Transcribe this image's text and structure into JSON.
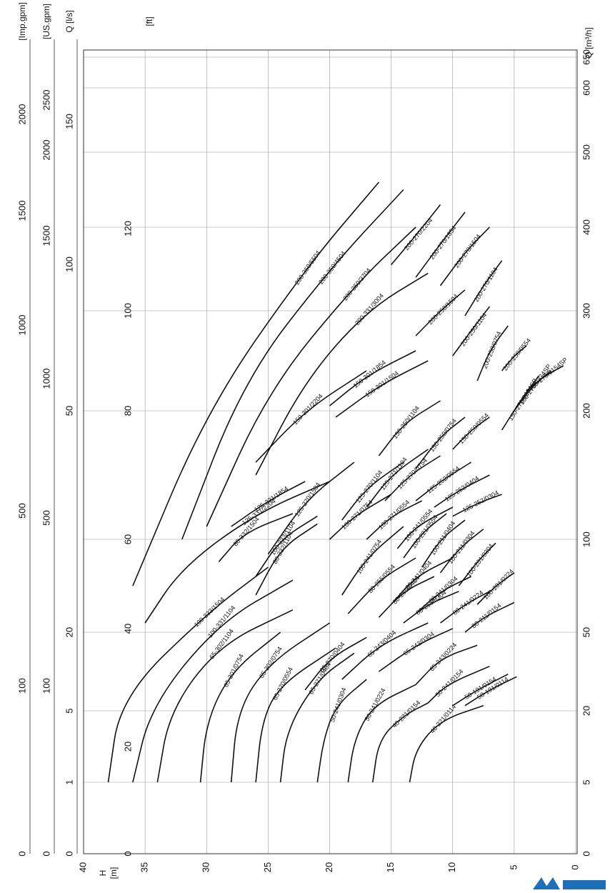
{
  "chart_data": {
    "type": "line",
    "grid": true,
    "x_axis": {
      "label": "H\n[m]",
      "ticks": [
        0,
        5,
        10,
        15,
        20,
        25,
        30,
        35,
        40
      ],
      "range": [
        0,
        40
      ]
    },
    "y_axis_primary": {
      "label": "Q [m³/h]",
      "ticks": [
        0,
        5,
        20,
        50,
        100,
        200,
        300,
        400,
        500,
        600,
        650
      ],
      "range": [
        0,
        650
      ],
      "scale": "nonlinear"
    },
    "secondary_axes": [
      {
        "label": "[ft]",
        "ticks": [
          "0",
          "20",
          "40",
          "60",
          "80",
          "100",
          "120"
        ]
      },
      {
        "label": "Q [l/s]",
        "ticks": [
          "0",
          "1",
          "5",
          "20",
          "50",
          "100",
          "150"
        ]
      },
      {
        "label": "[US.gpm]",
        "ticks": [
          "0",
          "100",
          "500",
          "1000",
          "1500",
          "2000",
          "2500"
        ]
      },
      {
        "label": "[Imp.gpm]",
        "ticks": [
          "0",
          "100",
          "500",
          "1000",
          "1500",
          "2000"
        ]
      }
    ],
    "series": [
      {
        "name": "40-221/0114",
        "points": [
          [
            13.5,
            5
          ],
          [
            13,
            12
          ],
          [
            11,
            18
          ],
          [
            7.5,
            22
          ]
        ]
      },
      {
        "name": "40-221/0154",
        "points": [
          [
            16.5,
            5
          ],
          [
            16,
            14
          ],
          [
            14,
            19
          ],
          [
            12,
            23
          ]
        ]
      },
      {
        "name": "50-191/0114",
        "points": [
          [
            9,
            22
          ],
          [
            7,
            28
          ],
          [
            4.8,
            33
          ]
        ]
      },
      {
        "name": "50-191/0154",
        "points": [
          [
            10,
            22
          ],
          [
            8,
            28
          ],
          [
            5.5,
            34
          ]
        ]
      },
      {
        "name": "50-241/0154",
        "points": [
          [
            12,
            23
          ],
          [
            10.5,
            30
          ],
          [
            7,
            37
          ]
        ]
      },
      {
        "name": "50-241/0224",
        "points": [
          [
            18.5,
            5
          ],
          [
            18,
            14
          ],
          [
            16.5,
            22
          ],
          [
            13,
            30
          ]
        ]
      },
      {
        "name": "50-241/0304",
        "points": [
          [
            21,
            5
          ],
          [
            20.5,
            14
          ],
          [
            19.5,
            22
          ],
          [
            17,
            32
          ]
        ]
      },
      {
        "name": "65-243/0224",
        "points": [
          [
            13,
            30
          ],
          [
            11,
            40
          ],
          [
            8,
            45
          ]
        ]
      },
      {
        "name": "65-243/0304",
        "points": [
          [
            16,
            35
          ],
          [
            13,
            45
          ],
          [
            10,
            52
          ]
        ]
      },
      {
        "name": "65-243/0404",
        "points": [
          [
            19,
            32
          ],
          [
            16,
            45
          ],
          [
            12,
            55
          ]
        ]
      },
      {
        "name": "65-270/0404",
        "points": [
          [
            22,
            28
          ],
          [
            20,
            40
          ],
          [
            17,
            48
          ]
        ]
      },
      {
        "name": "65-270/0554",
        "points": [
          [
            26,
            5
          ],
          [
            25.5,
            18
          ],
          [
            24,
            30
          ],
          [
            19.5,
            44
          ]
        ]
      },
      {
        "name": "65-271/0404",
        "points": [
          [
            24,
            5
          ],
          [
            23.5,
            16
          ],
          [
            21,
            32
          ],
          [
            18,
            42
          ]
        ]
      },
      {
        "name": "65-301/0754",
        "points": [
          [
            30.5,
            5
          ],
          [
            30,
            18
          ],
          [
            28,
            35
          ],
          [
            24,
            50
          ]
        ]
      },
      {
        "name": "65-302/0754",
        "points": [
          [
            28,
            5
          ],
          [
            27.5,
            20
          ],
          [
            25,
            38
          ],
          [
            20,
            55
          ]
        ]
      },
      {
        "name": "65-302/1104",
        "points": [
          [
            34,
            5
          ],
          [
            33,
            20
          ],
          [
            29,
            45
          ],
          [
            23,
            62
          ]
        ]
      },
      {
        "name": "80-211/0154",
        "points": [
          [
            9,
            50
          ],
          [
            7.5,
            58
          ],
          [
            5,
            66
          ]
        ]
      },
      {
        "name": "80-241/0224",
        "points": [
          [
            11,
            55
          ],
          [
            9,
            65
          ],
          [
            7,
            72
          ]
        ]
      },
      {
        "name": "80-241/0304",
        "points": [
          [
            13,
            60
          ],
          [
            11,
            72
          ],
          [
            8.5,
            80
          ]
        ]
      },
      {
        "name": "80-241/0404",
        "points": [
          [
            15,
            65
          ],
          [
            13,
            80
          ],
          [
            10,
            90
          ]
        ]
      },
      {
        "name": "80-255/0304",
        "points": [
          [
            14,
            55
          ],
          [
            12,
            65
          ],
          [
            9.5,
            72
          ]
        ]
      },
      {
        "name": "80-255/0404",
        "points": [
          [
            16,
            58
          ],
          [
            14,
            72
          ],
          [
            11.5,
            80
          ]
        ]
      },
      {
        "name": "80-255/0554",
        "points": [
          [
            18.5,
            60
          ],
          [
            16,
            78
          ],
          [
            13,
            90
          ]
        ]
      },
      {
        "name": "80-332/1104",
        "points": [
          [
            26,
            70
          ],
          [
            24,
            95
          ],
          [
            21,
            112
          ]
        ]
      },
      {
        "name": "80-332/1504",
        "points": [
          [
            29,
            88
          ],
          [
            27,
            105
          ],
          [
            23,
            120
          ]
        ]
      },
      {
        "name": "100-201/0224",
        "points": [
          [
            8,
            65
          ],
          [
            6.5,
            75
          ],
          [
            5,
            82
          ]
        ]
      },
      {
        "name": "100-201/0304",
        "points": [
          [
            9.5,
            75
          ],
          [
            8,
            88
          ],
          [
            6.5,
            98
          ]
        ]
      },
      {
        "name": "100-211/0304",
        "points": [
          [
            11,
            82
          ],
          [
            9.5,
            95
          ],
          [
            7.5,
            108
          ]
        ]
      },
      {
        "name": "100-211/0404",
        "points": [
          [
            12.5,
            85
          ],
          [
            11,
            100
          ],
          [
            9,
            115
          ]
        ]
      },
      {
        "name": "100-221/0554",
        "points": [
          [
            14,
            90
          ],
          [
            12.5,
            105
          ],
          [
            10.5,
            120
          ]
        ]
      },
      {
        "name": "100-241/0554",
        "points": [
          [
            14.5,
            95
          ],
          [
            13,
            110
          ],
          [
            10,
            125
          ]
        ]
      },
      {
        "name": "100-241/0754",
        "points": [
          [
            19,
            70
          ],
          [
            17,
            90
          ],
          [
            14,
            110
          ]
        ]
      },
      {
        "name": "100-271/0554",
        "points": [
          [
            17,
            100
          ],
          [
            15,
            118
          ],
          [
            12.5,
            130
          ]
        ]
      },
      {
        "name": "100-271/0754",
        "points": [
          [
            20,
            100
          ],
          [
            18,
            118
          ],
          [
            15,
            135
          ]
        ]
      },
      {
        "name": "100-331/1104",
        "points": [
          [
            36,
            5
          ],
          [
            34.5,
            22
          ],
          [
            29,
            55
          ],
          [
            23,
            78
          ]
        ]
      },
      {
        "name": "100-333/1104",
        "points": [
          [
            26,
            80
          ],
          [
            24,
            100
          ],
          [
            21,
            118
          ]
        ]
      },
      {
        "name": "100-333/1504",
        "points": [
          [
            38,
            5
          ],
          [
            37,
            25
          ],
          [
            30,
            60
          ],
          [
            25,
            85
          ]
        ]
      },
      {
        "name": "125-252/0304",
        "points": [
          [
            10,
            118
          ],
          [
            8,
            128
          ],
          [
            6,
            135
          ]
        ]
      },
      {
        "name": "125-252/0404",
        "points": [
          [
            11.5,
            125
          ],
          [
            9.5,
            138
          ],
          [
            7,
            150
          ]
        ]
      },
      {
        "name": "125-252/0554",
        "points": [
          [
            13,
            130
          ],
          [
            11,
            145
          ],
          [
            8.5,
            160
          ]
        ]
      },
      {
        "name": "125-270/0754",
        "points": [
          [
            15.5,
            130
          ],
          [
            13.5,
            150
          ],
          [
            11,
            165
          ]
        ]
      },
      {
        "name": "125-270/1104",
        "points": [
          [
            19,
            115
          ],
          [
            17,
            140
          ],
          [
            14,
            160
          ]
        ]
      },
      {
        "name": "125-270/1504",
        "points": [
          [
            25,
            92
          ],
          [
            22,
            130
          ],
          [
            18,
            160
          ]
        ]
      },
      {
        "name": "125-271/1104",
        "points": [
          [
            17,
            125
          ],
          [
            15,
            150
          ],
          [
            12,
            170
          ]
        ]
      },
      {
        "name": "125-331/1854",
        "points": [
          [
            28,
            110
          ],
          [
            25,
            130
          ],
          [
            22,
            145
          ]
        ]
      },
      {
        "name": "125-331/2204",
        "points": [
          [
            35,
            55
          ],
          [
            32,
            85
          ],
          [
            26,
            120
          ],
          [
            20,
            145
          ]
        ]
      },
      {
        "name": "150-250/0554",
        "points": [
          [
            10,
            170
          ],
          [
            8.5,
            185
          ],
          [
            7,
            195
          ]
        ]
      },
      {
        "name": "150-250/0754",
        "points": [
          [
            13,
            155
          ],
          [
            11,
            180
          ],
          [
            9,
            195
          ]
        ]
      },
      {
        "name": "150-250/1104",
        "points": [
          [
            16,
            165
          ],
          [
            14,
            190
          ],
          [
            11,
            210
          ]
        ]
      },
      {
        "name": "150-270/0154SP",
        "points": [
          [
            4,
            220
          ],
          [
            2.5,
            235
          ],
          [
            1,
            245
          ]
        ]
      },
      {
        "name": "150-270/0224SP",
        "points": [
          [
            5,
            200
          ],
          [
            3.5,
            225
          ],
          [
            2,
            240
          ]
        ]
      },
      {
        "name": "150-270/0304SP",
        "points": [
          [
            6,
            185
          ],
          [
            4.5,
            210
          ],
          [
            3,
            235
          ]
        ]
      },
      {
        "name": "150-301/1504",
        "points": [
          [
            19.5,
            195
          ],
          [
            16,
            225
          ],
          [
            12,
            250
          ]
        ]
      },
      {
        "name": "150-301/1854",
        "points": [
          [
            20,
            205
          ],
          [
            17,
            235
          ],
          [
            13,
            260
          ]
        ]
      },
      {
        "name": "150-301/2204",
        "points": [
          [
            26,
            160
          ],
          [
            22,
            200
          ],
          [
            17,
            240
          ]
        ]
      },
      {
        "name": "200-250/0554",
        "points": [
          [
            6,
            240
          ],
          [
            5,
            255
          ],
          [
            4,
            265
          ]
        ]
      },
      {
        "name": "200-250/0754",
        "points": [
          [
            8,
            230
          ],
          [
            7,
            260
          ],
          [
            5.5,
            285
          ]
        ]
      },
      {
        "name": "200-250/1104",
        "points": [
          [
            10,
            255
          ],
          [
            8.5,
            280
          ],
          [
            7,
            305
          ]
        ]
      },
      {
        "name": "200-250/1504",
        "points": [
          [
            13,
            275
          ],
          [
            11,
            300
          ],
          [
            9,
            325
          ]
        ]
      },
      {
        "name": "200-270/1104",
        "points": [
          [
            9,
            295
          ],
          [
            7.5,
            330
          ],
          [
            6,
            360
          ]
        ]
      },
      {
        "name": "200-270/1504",
        "points": [
          [
            11,
            330
          ],
          [
            9,
            370
          ],
          [
            7,
            400
          ]
        ]
      },
      {
        "name": "200-270/1854",
        "points": [
          [
            13,
            340
          ],
          [
            11,
            380
          ],
          [
            9,
            420
          ]
        ]
      },
      {
        "name": "200-270/2204",
        "points": [
          [
            15,
            355
          ],
          [
            13,
            390
          ],
          [
            11,
            430
          ]
        ]
      },
      {
        "name": "200-331/3004",
        "points": [
          [
            26,
            150
          ],
          [
            22,
            230
          ],
          [
            17,
            300
          ],
          [
            12,
            345
          ]
        ]
      },
      {
        "name": "200-350/3704",
        "points": [
          [
            30,
            110
          ],
          [
            25,
            220
          ],
          [
            18,
            330
          ],
          [
            13,
            400
          ]
        ]
      },
      {
        "name": "200-350/4504",
        "points": [
          [
            32,
            100
          ],
          [
            27,
            230
          ],
          [
            20,
            350
          ],
          [
            14,
            450
          ]
        ]
      },
      {
        "name": "200-350/5504",
        "points": [
          [
            36,
            75
          ],
          [
            30,
            200
          ],
          [
            22,
            350
          ],
          [
            16,
            460
          ]
        ]
      }
    ]
  },
  "brand": {
    "logo_color": "#1e6fb8"
  }
}
